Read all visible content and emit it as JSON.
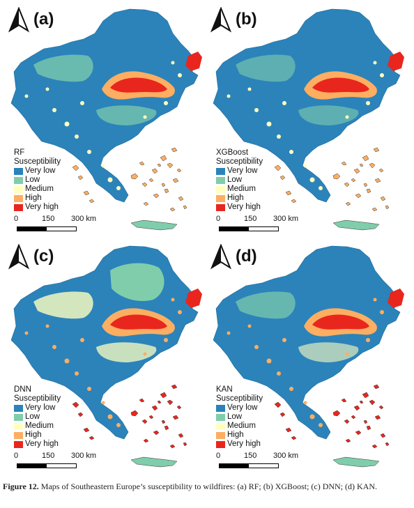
{
  "panels": [
    {
      "id": "a",
      "label": "(a)",
      "model": "RF"
    },
    {
      "id": "b",
      "label": "(b)",
      "model": "XGBoost"
    },
    {
      "id": "c",
      "label": "(c)",
      "model": "DNN"
    },
    {
      "id": "d",
      "label": "(d)",
      "model": "KAN"
    }
  ],
  "legend": {
    "title": "Susceptibility",
    "classes": [
      {
        "label": "Very low",
        "color": "#2b83ba"
      },
      {
        "label": "Low",
        "color": "#80cdab"
      },
      {
        "label": "Medium",
        "color": "#ffffbf"
      },
      {
        "label": "High",
        "color": "#fdae61"
      },
      {
        "label": "Very high",
        "color": "#e8261e"
      }
    ]
  },
  "scale_bar": {
    "tick0": "0",
    "tick1": "150",
    "tick2": "300 km"
  },
  "caption": {
    "label": "Figure 12.",
    "text": "Maps of Southeastern Europe’s susceptibility to wildfires: (a) RF; (b) XGBoost; (c) DNN; (d) KAN."
  }
}
